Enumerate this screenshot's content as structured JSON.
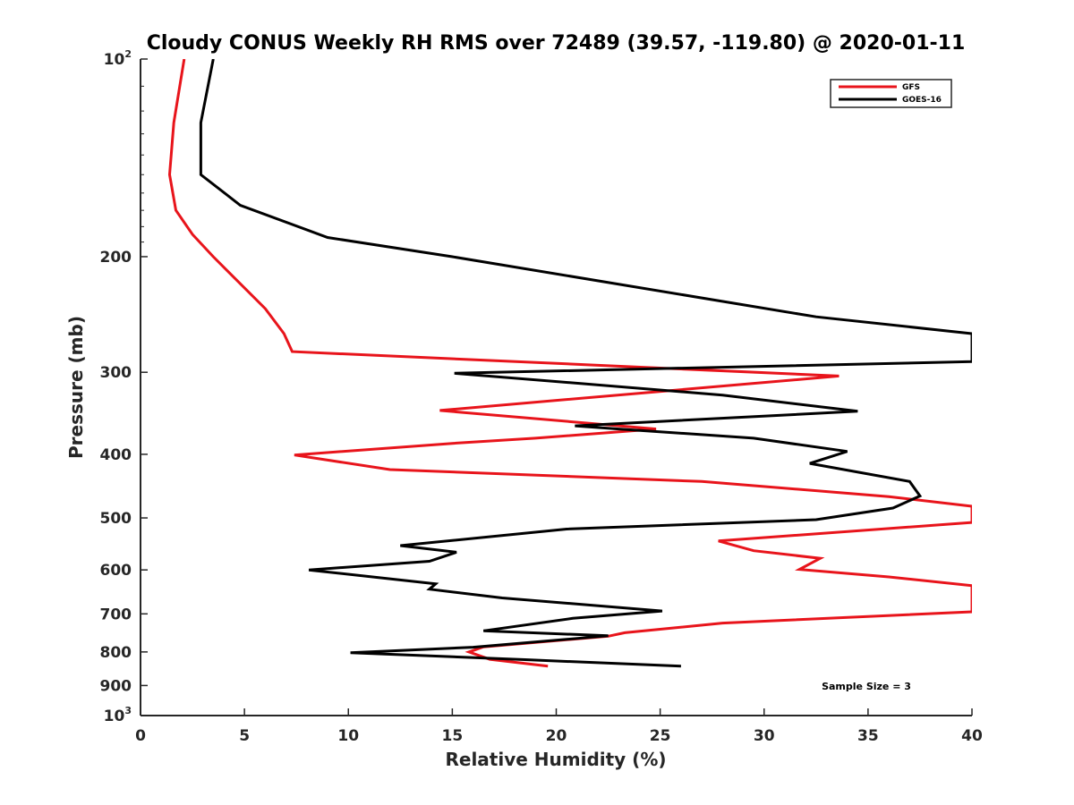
{
  "chart_data": {
    "type": "line",
    "title": "Cloudy CONUS Weekly RH RMS over 72489 (39.57, -119.80) @ 2020-01-11",
    "xlabel": "Relative Humidity (%)",
    "ylabel": "Pressure (mb)",
    "xlim": [
      0,
      40
    ],
    "ylim": [
      100,
      1000
    ],
    "y_scale": "log",
    "y_reversed": true,
    "xticks": [
      0,
      5,
      10,
      15,
      20,
      25,
      30,
      35,
      40
    ],
    "yticks": [
      {
        "value": 100,
        "base": "10",
        "exp": "2"
      },
      {
        "value": 200,
        "label": "200"
      },
      {
        "value": 300,
        "label": "300"
      },
      {
        "value": 400,
        "label": "400"
      },
      {
        "value": 500,
        "label": "500"
      },
      {
        "value": 600,
        "label": "600"
      },
      {
        "value": 700,
        "label": "700"
      },
      {
        "value": 800,
        "label": "800"
      },
      {
        "value": 900,
        "label": "900"
      },
      {
        "value": 1000,
        "base": "10",
        "exp": "3"
      }
    ],
    "grid": false,
    "legend_position": "top-right",
    "annotation": "Sample Size = 3",
    "series": [
      {
        "name": "GFS",
        "color": "#e8141b",
        "points": [
          [
            2.1,
            100
          ],
          [
            1.6,
            125
          ],
          [
            1.4,
            150
          ],
          [
            1.7,
            170
          ],
          [
            2.5,
            185
          ],
          [
            3.5,
            200
          ],
          [
            6.0,
            240
          ],
          [
            6.9,
            262
          ],
          [
            7.3,
            279
          ],
          [
            33.6,
            304
          ],
          [
            14.4,
            343
          ],
          [
            24.8,
            366
          ],
          [
            19.0,
            378
          ],
          [
            15.0,
            385
          ],
          [
            7.4,
            401
          ],
          [
            12.0,
            422
          ],
          [
            27.0,
            440
          ],
          [
            36.0,
            464
          ],
          [
            40.0,
            480
          ],
          [
            40.0,
            508
          ],
          [
            27.8,
            542
          ],
          [
            29.5,
            561
          ],
          [
            32.7,
            576
          ],
          [
            31.7,
            599
          ],
          [
            36.0,
            615
          ],
          [
            40.0,
            634
          ],
          [
            40.0,
            695
          ],
          [
            28.0,
            723
          ],
          [
            23.3,
            748
          ],
          [
            22.5,
            757
          ],
          [
            16.5,
            786
          ],
          [
            15.8,
            800
          ],
          [
            16.8,
            821
          ],
          [
            19.6,
            841
          ]
        ]
      },
      {
        "name": "GOES-16",
        "color": "#000000",
        "points": [
          [
            3.5,
            100
          ],
          [
            2.9,
            125
          ],
          [
            2.9,
            150
          ],
          [
            4.8,
            167
          ],
          [
            9.0,
            187
          ],
          [
            15.0,
            200
          ],
          [
            32.5,
            247
          ],
          [
            40.0,
            262
          ],
          [
            40.0,
            289
          ],
          [
            15.1,
            301
          ],
          [
            28.0,
            325
          ],
          [
            34.5,
            344
          ],
          [
            20.9,
            362
          ],
          [
            23.0,
            366
          ],
          [
            29.5,
            378
          ],
          [
            34.0,
            396
          ],
          [
            32.2,
            413
          ],
          [
            37.0,
            440
          ],
          [
            37.5,
            463
          ],
          [
            36.2,
            483
          ],
          [
            32.5,
            503
          ],
          [
            20.5,
            520
          ],
          [
            12.5,
            551
          ],
          [
            15.2,
            564
          ],
          [
            13.9,
            582
          ],
          [
            8.1,
            600
          ],
          [
            14.2,
            630
          ],
          [
            13.9,
            642
          ],
          [
            17.4,
            662
          ],
          [
            25.1,
            693
          ],
          [
            20.8,
            711
          ],
          [
            16.5,
            743
          ],
          [
            22.5,
            756
          ],
          [
            16.0,
            787
          ],
          [
            10.1,
            802
          ],
          [
            18.5,
            822
          ],
          [
            26.0,
            841
          ]
        ]
      }
    ]
  }
}
